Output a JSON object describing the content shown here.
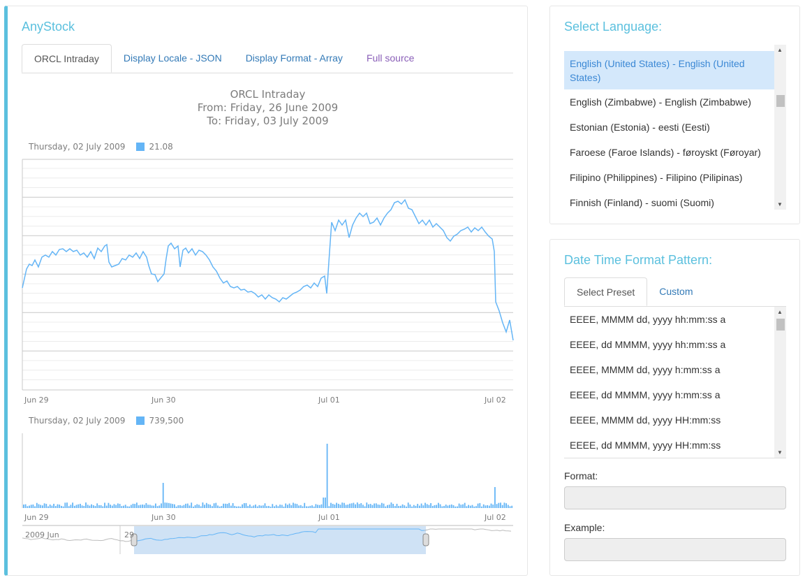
{
  "app": {
    "title": "AnyStock"
  },
  "tabs": [
    {
      "label": "ORCL Intraday"
    },
    {
      "label": "Display Locale - JSON"
    },
    {
      "label": "Display Format - Array"
    },
    {
      "label": "Full source"
    }
  ],
  "chart": {
    "title": "ORCL Intraday",
    "subtitle1": "From: Friday, 26 June 2009",
    "subtitle2": "To: Friday, 03 July 2009",
    "price_legend": {
      "date": "Thursday, 02 July 2009",
      "value": "21.08"
    },
    "volume_legend": {
      "date": "Thursday, 02 July 2009",
      "value": "739,500"
    },
    "x_ticks": [
      "Jun 29",
      "Jun 30",
      "Jul 01",
      "Jul 02"
    ],
    "scroller_labels": [
      "2009 Jun",
      "29"
    ],
    "series_color": "#64b5f6",
    "selection_color": "#cfe2f5"
  },
  "language": {
    "title": "Select Language:",
    "items": [
      "English (United States) - English (United States)",
      "English (Zimbabwe) - English (Zimbabwe)",
      "Estonian (Estonia) - eesti (Eesti)",
      "Faroese (Faroe Islands) - føroyskt (Føroyar)",
      "Filipino (Philippines) - Filipino (Pilipinas)",
      "Finnish (Finland) - suomi (Suomi)"
    ],
    "selected": 0
  },
  "format": {
    "title": "Date Time Format Pattern:",
    "tabs": [
      "Select Preset",
      "Custom"
    ],
    "presets": [
      "EEEE, MMMM dd, yyyy hh:mm:ss a",
      "EEEE, dd MMMM, yyyy hh:mm:ss a",
      "EEEE, MMMM dd, yyyy h:mm:ss a",
      "EEEE, dd MMMM, yyyy h:mm:ss a",
      "EEEE, MMMM dd, yyyy HH:mm:ss",
      "EEEE, dd MMMM, yyyy HH:mm:ss"
    ],
    "format_label": "Format:",
    "format_value": "",
    "example_label": "Example:",
    "example_value": ""
  }
}
